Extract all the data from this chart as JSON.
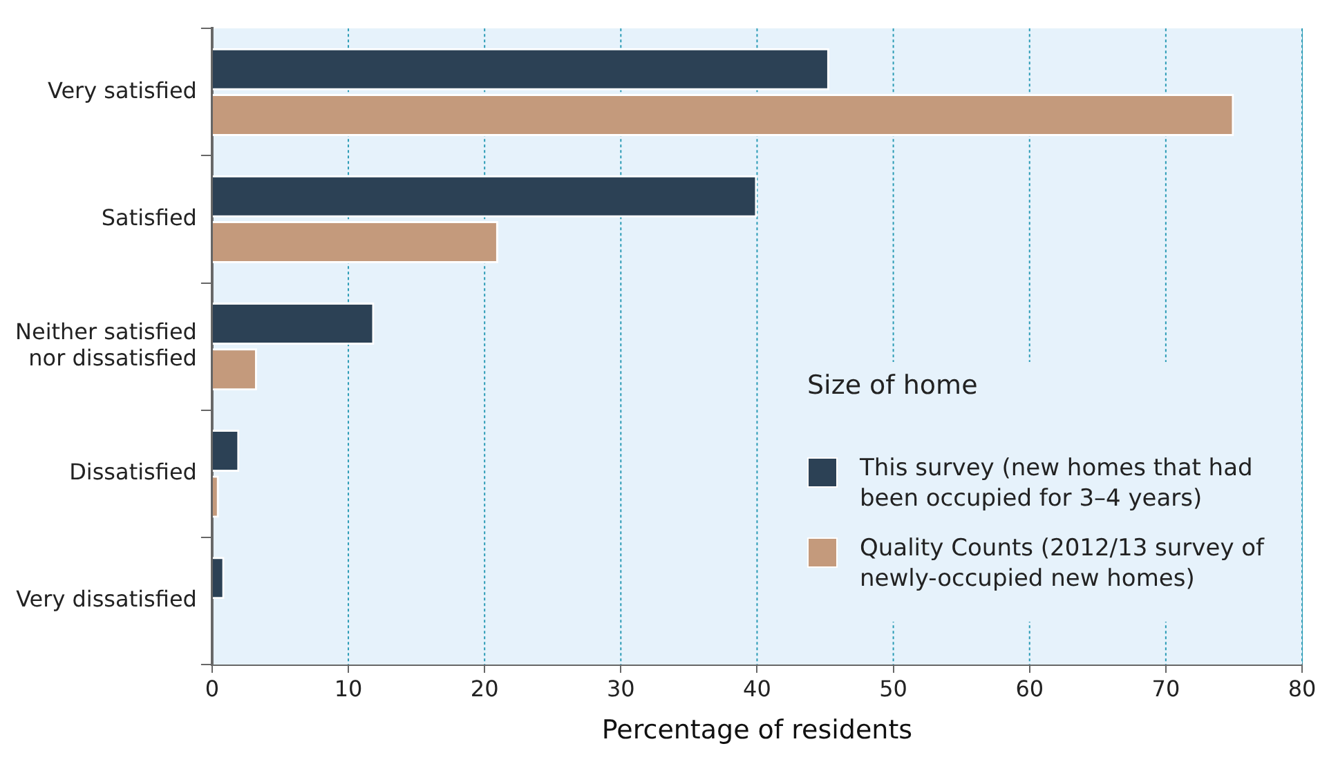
{
  "chart_data": {
    "type": "bar",
    "orientation": "horizontal",
    "xlabel": "Percentage of residents",
    "legend_title": "Size of home",
    "categories": [
      "Very satisfied",
      "Satisfied",
      "Neither satisfied\nnor dissatisfied",
      "Dissatisfied",
      "Very dissatisfied"
    ],
    "series": [
      {
        "name": "This survey (new homes that had been occupied for 3–4 years)",
        "color": "#2c4155",
        "values": [
          45.3,
          40,
          11.9,
          2,
          0.9
        ]
      },
      {
        "name": "Quality Counts (2012/13 survey of newly-occupied new homes)",
        "color": "#c49a7c",
        "values": [
          75,
          21,
          3.3,
          0.5,
          0
        ]
      }
    ],
    "xlim": [
      0,
      80
    ],
    "xticks": [
      0,
      10,
      20,
      30,
      40,
      50,
      60,
      70,
      80
    ],
    "grid": "x",
    "legend": "bottom right"
  }
}
